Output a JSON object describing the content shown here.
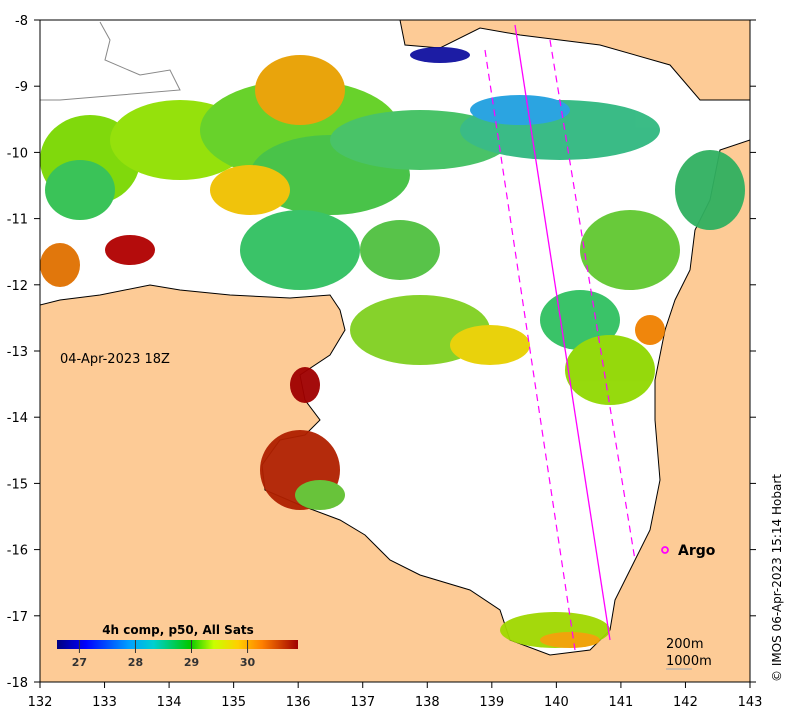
{
  "map": {
    "timestamp_label": "04-Apr-2023 18Z",
    "colorbar": {
      "title": "4h comp, p50, All Sats",
      "ticks": [
        "27",
        "28",
        "29",
        "30"
      ],
      "range": [
        26.6,
        30.9
      ]
    },
    "x_ticks": [
      "132",
      "133",
      "134",
      "135",
      "136",
      "137",
      "138",
      "139",
      "140",
      "141",
      "142",
      "143"
    ],
    "y_ticks": [
      "-8",
      "-9",
      "-10",
      "-11",
      "-12",
      "-13",
      "-14",
      "-15",
      "-16",
      "-17",
      "-18"
    ],
    "argo_label": "Argo",
    "argo_color": "#ff00ff",
    "contour_labels": [
      "200m",
      "1000m"
    ],
    "credit": "© IMOS 06-Apr-2023 15:14 Hobart",
    "land_color": "#fdcb96"
  }
}
